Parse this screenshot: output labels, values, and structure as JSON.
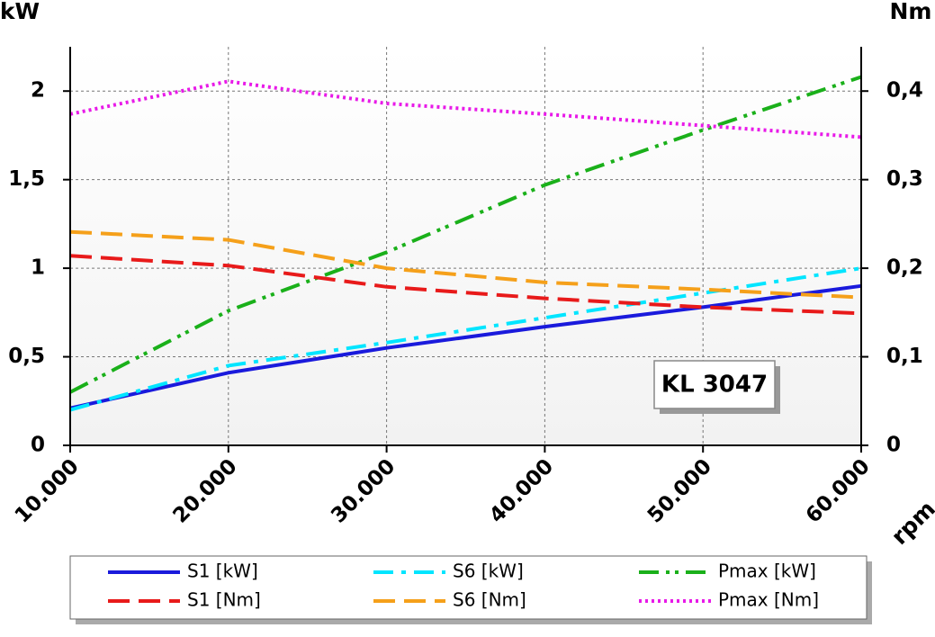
{
  "chart_data": {
    "type": "line",
    "annotation": "KL 3047",
    "ylabel": "kW",
    "y2label": "Nm",
    "xlabel": "rpm",
    "x": [
      10000,
      20000,
      30000,
      40000,
      50000,
      60000
    ],
    "xlim": [
      10000,
      60000
    ],
    "xticks": [
      {
        "value": 10000,
        "label": "10.000"
      },
      {
        "value": 20000,
        "label": "20.000"
      },
      {
        "value": 30000,
        "label": "30.000"
      },
      {
        "value": 40000,
        "label": "40.000"
      },
      {
        "value": 50000,
        "label": "50.000"
      },
      {
        "value": 60000,
        "label": "60.000"
      }
    ],
    "ylim": [
      0,
      2.25
    ],
    "yticks": [
      0,
      {
        "value": 0.5,
        "label": "0,5"
      },
      1,
      {
        "value": 1.5,
        "label": "1,5"
      },
      2
    ],
    "y2lim": [
      0,
      0.45
    ],
    "y2ticks": [
      0,
      {
        "value": 0.1,
        "label": "0,1"
      },
      {
        "value": 0.2,
        "label": "0,2"
      },
      {
        "value": 0.3,
        "label": "0,3"
      },
      {
        "value": 0.4,
        "label": "0,4"
      }
    ],
    "grid": true,
    "series": [
      {
        "name": "S1 [kW]",
        "color": "#1a1adc",
        "dash": "solid",
        "values": [
          0.21,
          0.41,
          0.55,
          0.67,
          0.78,
          0.9
        ]
      },
      {
        "name": "S6 [kW]",
        "color": "#00e5ff",
        "dash": "dashdot",
        "values": [
          0.2,
          0.45,
          0.58,
          0.72,
          0.86,
          1.0
        ]
      },
      {
        "name": "Pmax [kW]",
        "color": "#1ab01a",
        "dash": "dashdotdot",
        "values": [
          0.3,
          0.76,
          1.09,
          1.47,
          1.78,
          2.08
        ]
      },
      {
        "name": "S1 [Nm]",
        "color": "#e81a1a",
        "dash": "dashed",
        "axis": "y2",
        "values": [
          0.214,
          0.203,
          0.179,
          0.166,
          0.156,
          0.149
        ]
      },
      {
        "name": "S6 [Nm]",
        "color": "#f5a01a",
        "dash": "dashed",
        "axis": "y2",
        "values": [
          0.241,
          0.232,
          0.2,
          0.184,
          0.176,
          0.167
        ]
      },
      {
        "name": "Pmax [Nm]",
        "color": "#e81ae8",
        "dash": "dotted",
        "axis": "y2",
        "values": [
          0.374,
          0.411,
          0.386,
          0.374,
          0.361,
          0.348
        ]
      }
    ]
  }
}
